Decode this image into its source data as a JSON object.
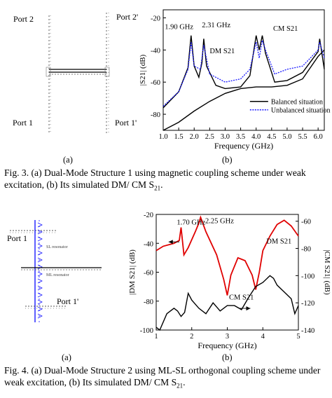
{
  "fig3": {
    "structure": {
      "port_2": "Port 2",
      "port_2p": "Port 2'",
      "port_1": "Port 1",
      "port_1p": "Port 1'"
    },
    "sublabel_a": "(a)",
    "sublabel_b": "(b)",
    "caption": "Fig. 3. (a) Dual-Mode Structure 1 using magnetic coupling scheme under weak excitation, (b) Its simulated DM/ CM S",
    "caption_sub": "21",
    "caption_end": "."
  },
  "fig4": {
    "structure": {
      "port_1": "Port 1",
      "port_1p": "Port 1'",
      "sl_resonator": "SL resonator",
      "ml_resonator": "ML resonator"
    },
    "sublabel_a": "(a)",
    "sublabel_b": "(b)",
    "caption": "Fig. 4. (a) Dual-Mode Structure 2 using ML-SL orthogonal coupling scheme under weak excitation, (b) Its simulated DM/ CM S",
    "caption_sub": "21",
    "caption_end": "."
  },
  "chart_data": [
    {
      "type": "line",
      "xlabel": "Frequency (GHz)",
      "ylabel": "|S21| (dB)",
      "xlim": [
        1.0,
        6.2
      ],
      "ylim": [
        -90,
        -15
      ],
      "xticks": [
        "1.0",
        "1.5",
        "2.0",
        "2.5",
        "3.0",
        "3.5",
        "4.0",
        "4.5",
        "5.0",
        "5.5",
        "6.0"
      ],
      "yticks": [
        "-20",
        "-40",
        "-60",
        "-80"
      ],
      "annotations": [
        "1.90 GHz",
        "2.31 GHz",
        "DM S21",
        "CM S21"
      ],
      "legend": {
        "position": "bottom-right",
        "entries": [
          "Balanced situation",
          "Unbalanced situation"
        ]
      },
      "series": [
        {
          "name": "Balanced situation",
          "style": "solid",
          "color": "#000000",
          "x": [
            1.0,
            1.5,
            2.0,
            2.5,
            3.0,
            3.5,
            4.0,
            4.5,
            5.0,
            5.5,
            6.0,
            6.2
          ],
          "y": [
            -90,
            -85,
            -78,
            -72,
            -67,
            -64,
            -63,
            -63,
            -62,
            -58,
            -44,
            -40
          ]
        },
        {
          "name": "DM S21",
          "style": "solid",
          "color": "#000000",
          "x": [
            1.0,
            1.5,
            1.8,
            1.9,
            2.0,
            2.15,
            2.25,
            2.31,
            2.4,
            2.7,
            3.0,
            3.5,
            3.8,
            4.0,
            4.1,
            4.2,
            4.3,
            4.6,
            5.0,
            5.5,
            6.0,
            6.05,
            6.2
          ],
          "y": [
            -76,
            -66,
            -51,
            -31,
            -50,
            -57,
            -48,
            -33,
            -50,
            -62,
            -64,
            -63,
            -56,
            -31,
            -40,
            -31,
            -42,
            -60,
            -59,
            -54,
            -41,
            -33,
            -52
          ]
        },
        {
          "name": "Unbalanced situation",
          "style": "dotted",
          "color": "#1a1aff",
          "x": [
            1.0,
            1.5,
            1.8,
            1.9,
            2.0,
            2.2,
            2.31,
            2.5,
            3.0,
            3.5,
            3.8,
            4.0,
            4.1,
            4.2,
            4.3,
            4.6,
            5.0,
            5.5,
            6.0,
            6.05,
            6.2
          ],
          "y": [
            -75,
            -66,
            -52,
            -35,
            -50,
            -52,
            -37,
            -55,
            -60,
            -58,
            -52,
            -35,
            -45,
            -34,
            -40,
            -55,
            -52,
            -50,
            -40,
            -35,
            -45
          ]
        }
      ]
    },
    {
      "type": "line",
      "xlabel": "Frequency (GHz)",
      "ylabel": "|DM S21| (dB)",
      "ylabel_right": "|CM S21| (dB)",
      "xlim": [
        1,
        5
      ],
      "ylim": [
        -100,
        -20
      ],
      "ylim_right": [
        -140,
        -55
      ],
      "xticks": [
        "1",
        "2",
        "3",
        "4",
        "5"
      ],
      "yticks": [
        "-20",
        "-40",
        "-60",
        "-80",
        "-100"
      ],
      "yticks_right": [
        "-60",
        "-80",
        "-100",
        "-120",
        "-140"
      ],
      "annotations": [
        "1.70 GHz",
        "2.25 GHz",
        "DM S21",
        "CM S21"
      ],
      "series": [
        {
          "name": "DM S21",
          "color": "#e00000",
          "x": [
            1.0,
            1.2,
            1.5,
            1.65,
            1.7,
            1.78,
            1.9,
            2.1,
            2.2,
            2.25,
            2.4,
            2.7,
            2.9,
            3.0,
            3.1,
            3.3,
            3.5,
            3.7,
            3.8,
            3.9,
            4.0,
            4.2,
            4.4,
            4.6,
            4.8,
            5.0
          ],
          "y": [
            -45,
            -42,
            -40,
            -38,
            -29,
            -48,
            -43,
            -32,
            -26,
            -22,
            -32,
            -48,
            -65,
            -76,
            -62,
            -50,
            -52,
            -62,
            -72,
            -60,
            -45,
            -35,
            -27,
            -24,
            -28,
            -35
          ]
        },
        {
          "name": "CM S21",
          "color": "#000000",
          "x": [
            1.0,
            1.1,
            1.3,
            1.5,
            1.6,
            1.7,
            1.8,
            1.9,
            2.0,
            2.2,
            2.4,
            2.6,
            2.8,
            3.0,
            3.2,
            3.4,
            3.6,
            3.8,
            4.0,
            4.2,
            4.3,
            4.4,
            4.6,
            4.8,
            4.9,
            5.0
          ],
          "y": [
            -138,
            -140,
            -128,
            -124,
            -126,
            -130,
            -127,
            -113,
            -118,
            -124,
            -128,
            -120,
            -126,
            -122,
            -122,
            -125,
            -116,
            -108,
            -105,
            -100,
            -102,
            -107,
            -112,
            -117,
            -128,
            -122
          ]
        }
      ]
    }
  ]
}
